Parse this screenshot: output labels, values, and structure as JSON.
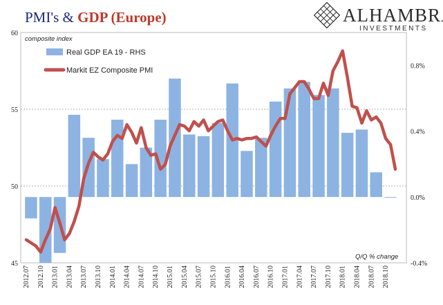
{
  "title": {
    "part1": "PMI's & ",
    "part2": "GDP (Europe)",
    "part1_color": "#1f2a78",
    "part2_color": "#c0392b"
  },
  "logo": {
    "main": "ALHAMBRA",
    "sub": "INVESTMENTS",
    "icon": "alhambra-grid-icon"
  },
  "chart_data": {
    "type": "bar+line",
    "left_axis_label": "composite index",
    "right_axis_label": "Q/Q % change",
    "left_axis": {
      "min": 45,
      "max": 60,
      "ticks": [
        45,
        50,
        55,
        60
      ]
    },
    "right_axis": {
      "min": -0.4,
      "max": 1.0,
      "ticks": [
        "-0.4%",
        "0.0%",
        "0.4%",
        "0.8%"
      ],
      "tick_values": [
        -0.4,
        0.0,
        0.4,
        0.8
      ]
    },
    "x_ticks": [
      "2012.07",
      "2012.10",
      "2013.01",
      "2013.04",
      "2013.07",
      "2013.10",
      "2014.01",
      "2014.04",
      "2014.07",
      "2014.10",
      "2015.01",
      "2015.04",
      "2015.07",
      "2015.10",
      "2016.01",
      "2016.04",
      "2016.07",
      "2016.10",
      "2017.01",
      "2017.04",
      "2017.07",
      "2017.10",
      "2018.01",
      "2018.04",
      "2018.07",
      "2018.10"
    ],
    "grid_left": [
      50,
      55
    ],
    "series": [
      {
        "name": "Real GDP EA 19 - RHS",
        "kind": "bar",
        "axis": "right",
        "color": "#8db3e2",
        "x": [
          "2012.07",
          "2012.10",
          "2013.01",
          "2013.04",
          "2013.07",
          "2013.10",
          "2014.01",
          "2014.04",
          "2014.07",
          "2014.10",
          "2015.01",
          "2015.04",
          "2015.07",
          "2015.10",
          "2016.01",
          "2016.04",
          "2016.07",
          "2016.10",
          "2017.01",
          "2017.04",
          "2017.07",
          "2017.10",
          "2018.01",
          "2018.04",
          "2018.07",
          "2018.10"
        ],
        "values": [
          -0.13,
          -0.4,
          -0.34,
          0.5,
          0.36,
          0.23,
          0.47,
          0.2,
          0.3,
          0.47,
          0.72,
          0.38,
          0.37,
          0.45,
          0.69,
          0.28,
          0.36,
          0.58,
          0.66,
          0.7,
          0.62,
          0.66,
          0.39,
          0.41,
          0.15,
          0.0
        ]
      },
      {
        "name": "Markit EZ Composite PMI",
        "kind": "line",
        "axis": "left",
        "color": "#c0504d",
        "x": [
          "2012.07",
          "2012.08",
          "2012.09",
          "2012.10",
          "2012.11",
          "2012.12",
          "2013.01",
          "2013.02",
          "2013.03",
          "2013.04",
          "2013.05",
          "2013.06",
          "2013.07",
          "2013.08",
          "2013.09",
          "2013.10",
          "2013.11",
          "2013.12",
          "2014.01",
          "2014.02",
          "2014.03",
          "2014.04",
          "2014.05",
          "2014.06",
          "2014.07",
          "2014.08",
          "2014.09",
          "2014.10",
          "2014.11",
          "2014.12",
          "2015.01",
          "2015.02",
          "2015.03",
          "2015.04",
          "2015.05",
          "2015.06",
          "2015.07",
          "2015.08",
          "2015.09",
          "2015.10",
          "2015.11",
          "2015.12",
          "2016.01",
          "2016.02",
          "2016.03",
          "2016.04",
          "2016.05",
          "2016.06",
          "2016.07",
          "2016.08",
          "2016.09",
          "2016.10",
          "2016.11",
          "2016.12",
          "2017.01",
          "2017.02",
          "2017.03",
          "2017.04",
          "2017.05",
          "2017.06",
          "2017.07",
          "2017.08",
          "2017.09",
          "2017.10",
          "2017.11",
          "2017.12",
          "2018.01",
          "2018.02",
          "2018.03",
          "2018.04",
          "2018.05",
          "2018.06",
          "2018.07",
          "2018.08",
          "2018.09",
          "2018.10",
          "2018.11",
          "2018.12"
        ],
        "values": [
          46.5,
          46.3,
          46.1,
          45.7,
          46.5,
          47.2,
          48.6,
          47.6,
          46.5,
          46.9,
          47.7,
          48.7,
          50.5,
          51.5,
          52.2,
          51.9,
          51.7,
          52.1,
          52.9,
          53.3,
          53.1,
          54.0,
          53.5,
          52.8,
          53.8,
          52.5,
          52.0,
          52.1,
          51.1,
          51.4,
          52.6,
          53.3,
          54.0,
          53.9,
          53.6,
          54.2,
          53.9,
          54.3,
          53.6,
          53.9,
          54.2,
          54.3,
          53.6,
          53.0,
          53.1,
          53.0,
          53.1,
          53.1,
          53.2,
          52.9,
          52.6,
          53.3,
          53.9,
          54.4,
          54.4,
          56.0,
          56.4,
          56.8,
          56.8,
          56.3,
          55.7,
          55.7,
          56.7,
          55.9,
          57.5,
          58.1,
          58.8,
          57.1,
          55.2,
          55.1,
          54.1,
          54.9,
          54.3,
          54.5,
          54.1,
          53.1,
          52.7,
          51.1
        ]
      }
    ],
    "legend": {
      "position": "top-left"
    }
  }
}
